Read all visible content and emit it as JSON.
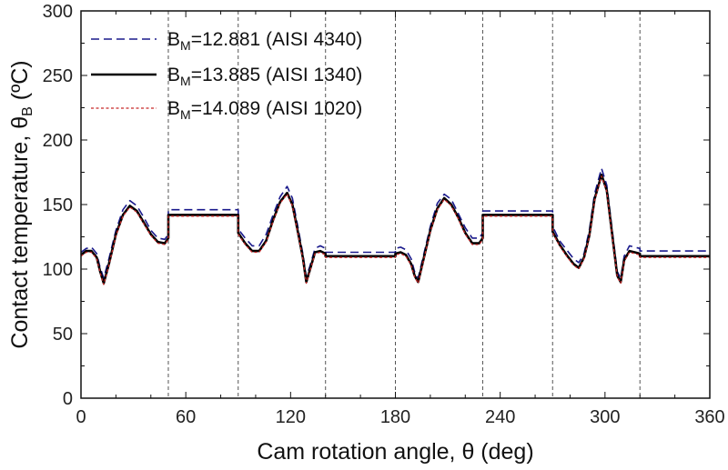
{
  "chart_data": {
    "type": "line",
    "xlabel": "Cam rotation angle, θ (deg)",
    "ylabel": "Contact temperature, θB (ºC)",
    "xlim": [
      0,
      360
    ],
    "ylim": [
      0,
      300
    ],
    "xticks": [
      0,
      60,
      120,
      180,
      240,
      300,
      360
    ],
    "yticks": [
      0,
      50,
      100,
      150,
      200,
      250,
      300
    ],
    "vlines": [
      50,
      90,
      140,
      180,
      230,
      270,
      320
    ],
    "legend_placement": "top-left",
    "grid": false,
    "series": [
      {
        "name": "BM=12.881 (AISI 4340)",
        "legend": {
          "main": "B",
          "sub": "M",
          "rest": "=12.881 (AISI 4340)"
        },
        "color": "#1a1a8c",
        "style": "dashed",
        "x": [
          0,
          3,
          6,
          9,
          11,
          13,
          16,
          20,
          24,
          28,
          32,
          36,
          40,
          44,
          48,
          50,
          50,
          90,
          90,
          94,
          98,
          102,
          106,
          110,
          114,
          118,
          121,
          124,
          127,
          129,
          131,
          134,
          137,
          140,
          140,
          180,
          180,
          183,
          186,
          189,
          191,
          193,
          196,
          200,
          204,
          208,
          212,
          216,
          220,
          224,
          228,
          230,
          230,
          270,
          270,
          274,
          278,
          282,
          285,
          288,
          291,
          294,
          298,
          301,
          304,
          307,
          309,
          311,
          314,
          317,
          320,
          320,
          360
        ],
        "y": [
          113,
          116,
          117,
          112,
          101,
          93,
          108,
          130,
          146,
          153,
          149,
          140,
          130,
          124,
          123,
          127,
          146,
          146,
          131,
          124,
          118,
          118,
          127,
          142,
          156,
          164,
          155,
          134,
          112,
          94,
          102,
          116,
          118,
          116,
          113,
          113,
          116,
          117,
          115,
          108,
          98,
          93,
          110,
          133,
          151,
          158,
          154,
          143,
          132,
          124,
          124,
          128,
          145,
          145,
          133,
          122,
          115,
          108,
          105,
          112,
          130,
          158,
          178,
          165,
          132,
          98,
          93,
          110,
          118,
          117,
          116,
          114,
          114
        ]
      },
      {
        "name": "BM=13.885 (AISI 1340)",
        "legend": {
          "main": "B",
          "sub": "M",
          "rest": "=13.885 (AISI 1340)"
        },
        "color": "#000000",
        "style": "solid",
        "x": [
          0,
          3,
          6,
          9,
          11,
          13,
          16,
          20,
          24,
          28,
          32,
          36,
          40,
          44,
          48,
          50,
          50,
          90,
          90,
          94,
          98,
          102,
          106,
          110,
          114,
          118,
          121,
          124,
          127,
          129,
          131,
          134,
          137,
          140,
          140,
          180,
          180,
          183,
          186,
          189,
          191,
          193,
          196,
          200,
          204,
          208,
          212,
          216,
          220,
          224,
          228,
          230,
          230,
          270,
          270,
          274,
          278,
          282,
          285,
          288,
          291,
          294,
          298,
          301,
          304,
          307,
          309,
          311,
          314,
          317,
          320,
          320,
          360
        ],
        "y": [
          111,
          114,
          114,
          109,
          98,
          89,
          104,
          127,
          142,
          149,
          145,
          136,
          127,
          121,
          120,
          124,
          142,
          142,
          128,
          120,
          114,
          114,
          122,
          138,
          152,
          159,
          150,
          130,
          109,
          90,
          99,
          113,
          114,
          112,
          110,
          110,
          112,
          113,
          111,
          104,
          95,
          90,
          107,
          130,
          147,
          155,
          150,
          140,
          128,
          120,
          120,
          124,
          142,
          142,
          129,
          119,
          111,
          104,
          101,
          109,
          126,
          154,
          173,
          161,
          128,
          95,
          90,
          107,
          114,
          113,
          112,
          110,
          110
        ]
      },
      {
        "name": "BM=14.089 (AISI 1020)",
        "legend": {
          "main": "B",
          "sub": "M",
          "rest": "=14.089 (AISI 1020)"
        },
        "color": "#c62828",
        "style": "dotted",
        "x": [
          0,
          3,
          6,
          9,
          11,
          13,
          16,
          20,
          24,
          28,
          32,
          36,
          40,
          44,
          48,
          50,
          50,
          90,
          90,
          94,
          98,
          102,
          106,
          110,
          114,
          118,
          121,
          124,
          127,
          129,
          131,
          134,
          137,
          140,
          140,
          180,
          180,
          183,
          186,
          189,
          191,
          193,
          196,
          200,
          204,
          208,
          212,
          216,
          220,
          224,
          228,
          230,
          230,
          270,
          270,
          274,
          278,
          282,
          285,
          288,
          291,
          294,
          298,
          301,
          304,
          307,
          309,
          311,
          314,
          317,
          320,
          320,
          360
        ],
        "y": [
          110,
          113,
          113,
          108,
          97,
          88,
          103,
          126,
          141,
          148,
          144,
          135,
          126,
          120,
          119,
          123,
          141,
          141,
          127,
          119,
          113,
          113,
          121,
          137,
          151,
          158,
          149,
          129,
          108,
          89,
          98,
          112,
          113,
          111,
          109,
          109,
          111,
          112,
          110,
          103,
          94,
          89,
          106,
          129,
          146,
          154,
          149,
          139,
          127,
          119,
          119,
          123,
          141,
          141,
          128,
          118,
          110,
          103,
          100,
          108,
          125,
          153,
          172,
          160,
          127,
          94,
          89,
          106,
          113,
          112,
          111,
          109,
          109
        ]
      }
    ]
  }
}
